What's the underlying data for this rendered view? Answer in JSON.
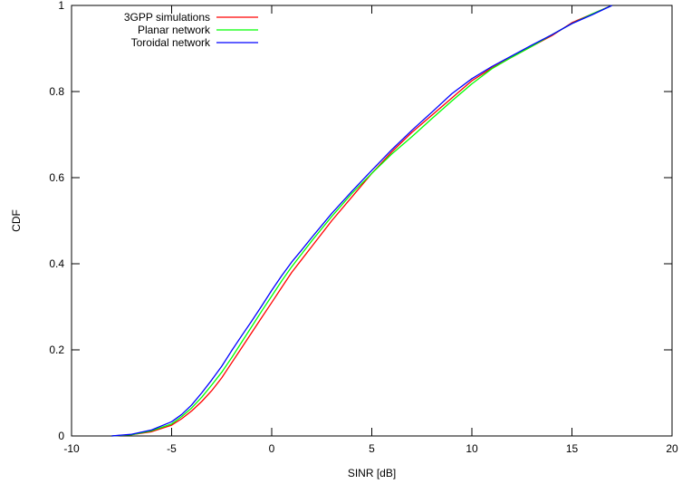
{
  "chart_data": {
    "type": "line",
    "xlabel": "SINR [dB]",
    "ylabel": "CDF",
    "xlim": [
      -10,
      20
    ],
    "ylim": [
      0,
      1
    ],
    "xticks": [
      -10,
      -5,
      0,
      5,
      10,
      15,
      20
    ],
    "yticks": [
      0,
      0.2,
      0.4,
      0.6,
      0.8,
      1
    ],
    "grid": false,
    "legend_position": "top-left",
    "series": [
      {
        "name": "3GPP simulations",
        "color": "#ff0000",
        "x": [
          -8,
          -7,
          -6,
          -5,
          -4.5,
          -4,
          -3.5,
          -3,
          -2.5,
          -2,
          -1.5,
          -1,
          -0.5,
          0,
          0.5,
          1,
          1.5,
          2,
          3,
          4,
          5,
          6,
          7,
          8,
          9,
          10,
          11,
          12,
          13,
          14,
          15,
          16,
          17
        ],
        "y": [
          0,
          0.003,
          0.01,
          0.025,
          0.04,
          0.058,
          0.08,
          0.105,
          0.135,
          0.17,
          0.205,
          0.24,
          0.275,
          0.31,
          0.345,
          0.38,
          0.41,
          0.44,
          0.5,
          0.555,
          0.61,
          0.66,
          0.705,
          0.745,
          0.785,
          0.825,
          0.855,
          0.88,
          0.905,
          0.93,
          0.96,
          0.98,
          1.0
        ]
      },
      {
        "name": "Planar network",
        "color": "#00ff00",
        "x": [
          -8,
          -7,
          -6,
          -5,
          -4.5,
          -4,
          -3.5,
          -3,
          -2.5,
          -2,
          -1.5,
          -1,
          -0.5,
          0,
          0.5,
          1,
          1.5,
          2,
          3,
          4,
          5,
          6,
          7,
          8,
          9,
          10,
          11,
          12,
          13,
          14,
          15,
          16,
          17
        ],
        "y": [
          0,
          0.003,
          0.012,
          0.028,
          0.045,
          0.065,
          0.09,
          0.118,
          0.148,
          0.182,
          0.218,
          0.254,
          0.29,
          0.325,
          0.36,
          0.393,
          0.423,
          0.453,
          0.51,
          0.563,
          0.61,
          0.655,
          0.695,
          0.737,
          0.778,
          0.818,
          0.853,
          0.88,
          0.905,
          0.932,
          0.958,
          0.98,
          1.0
        ]
      },
      {
        "name": "Toroidal network",
        "color": "#0000ff",
        "x": [
          -8,
          -7,
          -6,
          -5,
          -4.5,
          -4,
          -3.5,
          -3,
          -2.5,
          -2,
          -1.5,
          -1,
          -0.5,
          0,
          0.5,
          1,
          1.5,
          2,
          3,
          4,
          5,
          6,
          7,
          8,
          9,
          10,
          11,
          12,
          13,
          14,
          15,
          16,
          17
        ],
        "y": [
          0,
          0.004,
          0.014,
          0.033,
          0.05,
          0.072,
          0.1,
          0.13,
          0.162,
          0.198,
          0.233,
          0.267,
          0.302,
          0.338,
          0.372,
          0.404,
          0.432,
          0.461,
          0.517,
          0.568,
          0.617,
          0.665,
          0.71,
          0.752,
          0.795,
          0.83,
          0.858,
          0.883,
          0.908,
          0.932,
          0.958,
          0.978,
          1.0
        ]
      }
    ]
  }
}
